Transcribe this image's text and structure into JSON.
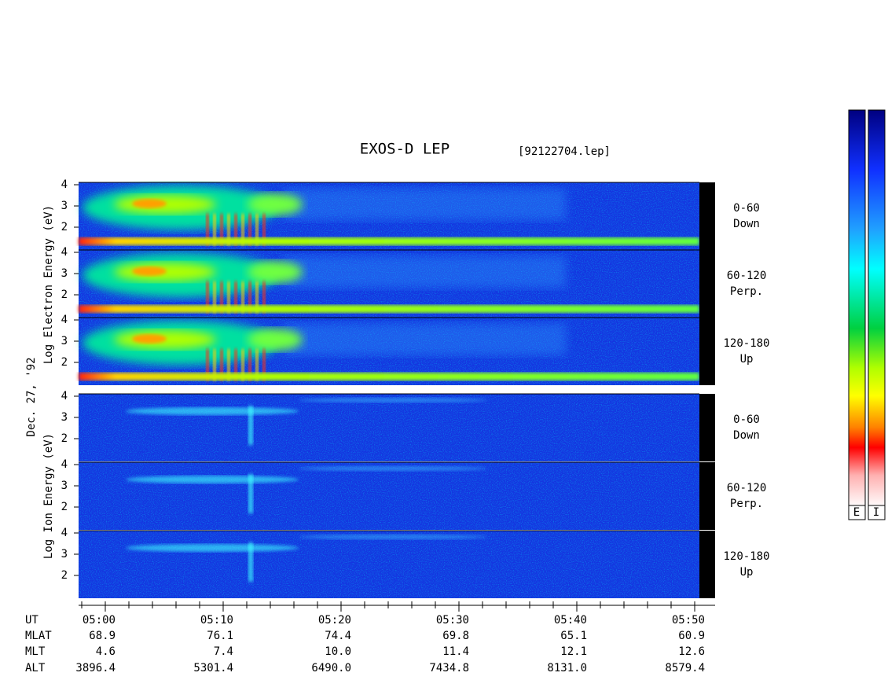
{
  "title": "EXOS-D LEP",
  "file": "[92122704.lep]",
  "date": "Dec. 27, '92",
  "electron": {
    "axis_label": "Log Electron Energy (eV)",
    "panels": [
      {
        "range": "0-60",
        "direction": "Down",
        "ticks": [
          2,
          3,
          4
        ]
      },
      {
        "range": "60-120",
        "direction": "Perp.",
        "ticks": [
          2,
          3,
          4
        ]
      },
      {
        "range": "120-180",
        "direction": "Up",
        "ticks": [
          2,
          3,
          4
        ]
      }
    ]
  },
  "ion": {
    "axis_label": "Log Ion Energy (eV)",
    "panels": [
      {
        "range": "0-60",
        "direction": "Down",
        "ticks": [
          2,
          3,
          4
        ]
      },
      {
        "range": "60-120",
        "direction": "Perp.",
        "ticks": [
          2,
          3,
          4
        ]
      },
      {
        "range": "120-180",
        "direction": "Up",
        "ticks": [
          2,
          3,
          4
        ]
      }
    ]
  },
  "time_axis": {
    "rows": [
      {
        "name": "UT",
        "values": [
          "05:00",
          "05:10",
          "05:20",
          "05:30",
          "05:40",
          "05:50"
        ]
      },
      {
        "name": "MLAT",
        "values": [
          "68.9",
          "76.1",
          "74.4",
          "69.8",
          "65.1",
          "60.9"
        ]
      },
      {
        "name": "MLT",
        "values": [
          "4.6",
          "7.4",
          "10.0",
          "11.4",
          "12.1",
          "12.6"
        ]
      },
      {
        "name": "ALT",
        "values": [
          "3896.4",
          "5301.4",
          "6490.0",
          "7434.8",
          "8131.0",
          "8579.4"
        ]
      }
    ]
  },
  "colorbar": {
    "labels": [
      "E",
      "I"
    ]
  }
}
